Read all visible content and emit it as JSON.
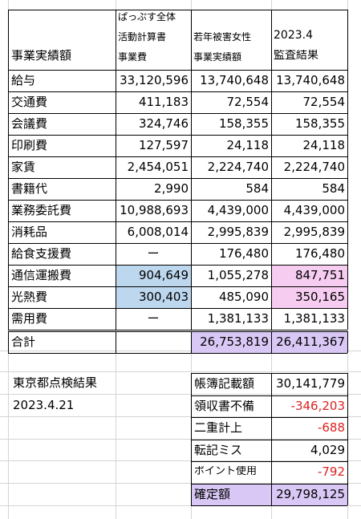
{
  "colors": {
    "blue_fill": "#bdd7ee",
    "pink_fill": "#f6cdf0",
    "purple_fill": "#d9c8f5",
    "negative_text": "#e02020",
    "grid": "#d4d4d4"
  },
  "header": {
    "col_label": "事業実績額",
    "col_b": [
      "ぱっぷす全体",
      "活動計算書",
      "事業費"
    ],
    "col_c": [
      "若年被害女性",
      "事業実績額"
    ],
    "col_d": [
      "2023.4",
      "監査結果"
    ]
  },
  "rows": [
    {
      "label": "給与",
      "b": "33,120,596",
      "c": "13,740,648",
      "d": "13,740,648"
    },
    {
      "label": "交通費",
      "b": "411,183",
      "c": "72,554",
      "d": "72,554"
    },
    {
      "label": "会議費",
      "b": "324,746",
      "c": "158,355",
      "d": "158,355"
    },
    {
      "label": "印刷費",
      "b": "127,597",
      "c": "24,118",
      "d": "24,118"
    },
    {
      "label": "家賃",
      "b": "2,454,051",
      "c": "2,224,740",
      "d": "2,224,740"
    },
    {
      "label": "書籍代",
      "b": "2,990",
      "c": "584",
      "d": "584"
    },
    {
      "label": "業務委託費",
      "b": "10,988,693",
      "c": "4,439,000",
      "d": "4,439,000"
    },
    {
      "label": "消耗品",
      "b": "6,008,014",
      "c": "2,995,839",
      "d": "2,995,839"
    },
    {
      "label": "給食支援費",
      "b": "ー",
      "c": "176,480",
      "d": "176,480"
    },
    {
      "label": "通信運搬費",
      "b": "904,649",
      "c": "1,055,278",
      "d": "847,751"
    },
    {
      "label": "光熱費",
      "b": "300,403",
      "c": "485,090",
      "d": "350,165"
    },
    {
      "label": "需用費",
      "b": "ー",
      "c": "1,381,133",
      "d": "1,381,133"
    }
  ],
  "total": {
    "label": "合計",
    "b": "",
    "c": "26,753,819",
    "d": "26,411,367"
  },
  "inspection": {
    "title": "東京都点検結果",
    "date": "2023.4.21",
    "items": [
      {
        "label": "帳簿記載額",
        "value": "30,141,779",
        "negative": false
      },
      {
        "label": "領収書不備",
        "value": "-346,203",
        "negative": true
      },
      {
        "label": "二重計上",
        "value": "-688",
        "negative": true
      },
      {
        "label": "転記ミス",
        "value": "4,029",
        "negative": false
      },
      {
        "label": "ポイント使用",
        "value": "-792",
        "negative": true
      },
      {
        "label": "確定額",
        "value": "29,798,125",
        "negative": false
      }
    ]
  }
}
